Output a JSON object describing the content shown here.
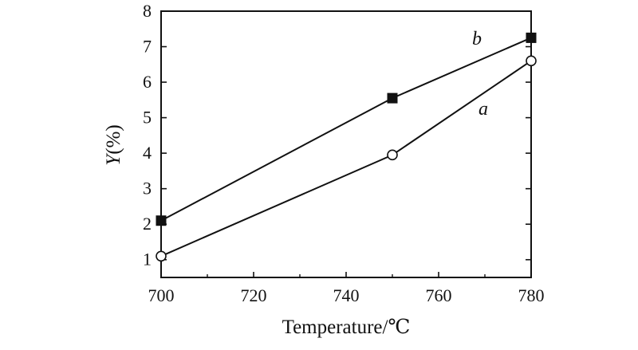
{
  "chart_data": {
    "type": "line",
    "title": "",
    "xlabel": "Temperature/℃",
    "ylabel_italic": "Y",
    "ylabel_rest": "(%)",
    "xlim": [
      700,
      780
    ],
    "ylim": [
      0.5,
      8
    ],
    "xticks": [
      700,
      720,
      740,
      760,
      780
    ],
    "yticks": [
      1,
      2,
      3,
      4,
      5,
      6,
      7,
      8
    ],
    "grid": false,
    "legend": "none",
    "x": [
      700,
      750,
      780
    ],
    "series": [
      {
        "name": "a",
        "marker": "open-circle",
        "color": "#111111",
        "values": [
          1.1,
          3.95,
          6.6
        ]
      },
      {
        "name": "b",
        "marker": "filled-square",
        "color": "#111111",
        "values": [
          2.1,
          5.55,
          7.25
        ]
      }
    ]
  }
}
